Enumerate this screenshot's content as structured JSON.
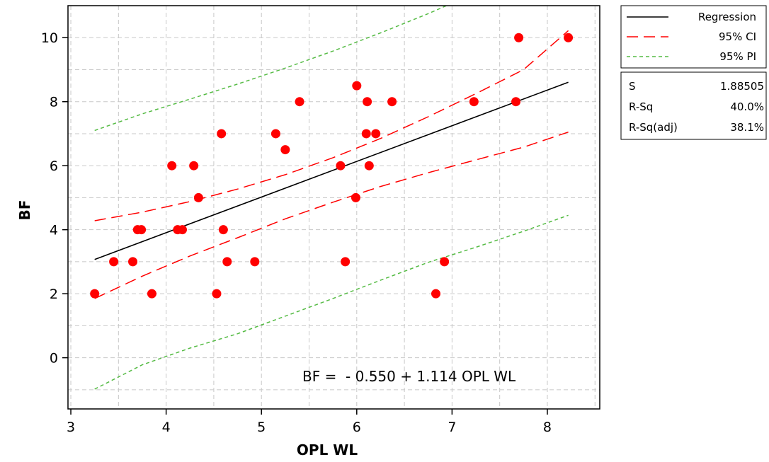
{
  "chart_data": {
    "type": "scatter",
    "xlabel": "OPL WL",
    "ylabel": "BF",
    "xlim": [
      2.97,
      8.55
    ],
    "ylim": [
      -1.6,
      11.0
    ],
    "x_ticks": [
      3,
      4,
      5,
      6,
      7,
      8
    ],
    "y_ticks": [
      0,
      2,
      4,
      6,
      8,
      10
    ],
    "grid": true,
    "legend_position": "top-right, outside plot",
    "equation": "BF =  - 0.550 + 1.114 OPL WL",
    "regression": {
      "intercept": -0.55,
      "slope": 1.114,
      "x_range": [
        3.25,
        8.22
      ]
    },
    "series": [
      {
        "name": "Data",
        "color": "#ff0000",
        "points": [
          [
            3.25,
            2
          ],
          [
            3.45,
            3
          ],
          [
            3.65,
            3
          ],
          [
            3.7,
            4
          ],
          [
            3.74,
            4
          ],
          [
            3.85,
            2
          ],
          [
            4.06,
            6
          ],
          [
            4.12,
            4
          ],
          [
            4.17,
            4
          ],
          [
            4.29,
            6
          ],
          [
            4.34,
            5
          ],
          [
            4.53,
            2
          ],
          [
            4.58,
            7
          ],
          [
            4.6,
            4
          ],
          [
            4.64,
            3
          ],
          [
            4.93,
            3
          ],
          [
            5.15,
            7
          ],
          [
            5.25,
            6.5
          ],
          [
            5.4,
            8
          ],
          [
            5.83,
            6
          ],
          [
            5.88,
            3
          ],
          [
            5.99,
            5
          ],
          [
            6.0,
            8.5
          ],
          [
            6.1,
            7
          ],
          [
            6.11,
            8
          ],
          [
            6.13,
            6
          ],
          [
            6.2,
            7
          ],
          [
            6.37,
            8
          ],
          [
            6.83,
            2
          ],
          [
            6.92,
            3
          ],
          [
            7.23,
            8
          ],
          [
            7.67,
            8
          ],
          [
            7.7,
            10
          ],
          [
            8.22,
            10
          ]
        ]
      }
    ],
    "ci_band": {
      "x": [
        3.25,
        3.75,
        4.25,
        4.75,
        5.25,
        5.75,
        6.25,
        6.75,
        7.25,
        7.75,
        8.22
      ],
      "upper": [
        4.28,
        4.55,
        4.88,
        5.27,
        5.72,
        6.25,
        6.85,
        7.53,
        8.25,
        9.0,
        10.22
      ],
      "lower": [
        1.85,
        2.55,
        3.18,
        3.75,
        4.34,
        4.86,
        5.35,
        5.78,
        6.18,
        6.58,
        7.05
      ]
    },
    "pi_band": {
      "x": [
        3.25,
        3.75,
        4.25,
        4.75,
        5.25,
        5.75,
        6.25,
        6.75,
        7.25,
        7.75,
        8.22
      ],
      "upper": [
        7.1,
        7.62,
        8.08,
        8.55,
        9.05,
        9.58,
        10.15,
        10.75,
        11.4,
        12.05,
        12.7
      ],
      "lower": [
        -0.98,
        -0.22,
        0.3,
        0.75,
        1.3,
        1.85,
        2.42,
        2.98,
        3.45,
        3.95,
        4.45
      ]
    }
  },
  "legend": {
    "items": [
      {
        "label": "Regression",
        "color": "#000000",
        "dash": ""
      },
      {
        "label": "95% CI",
        "color": "#ff0000",
        "dash": "16,8"
      },
      {
        "label": "95% PI",
        "color": "#55bb44",
        "dash": "5,4"
      }
    ]
  },
  "stats": {
    "rows": [
      {
        "label": "S",
        "value": "1.88505"
      },
      {
        "label": "R-Sq",
        "value": "40.0%"
      },
      {
        "label": "R-Sq(adj)",
        "value": "38.1%"
      }
    ]
  }
}
